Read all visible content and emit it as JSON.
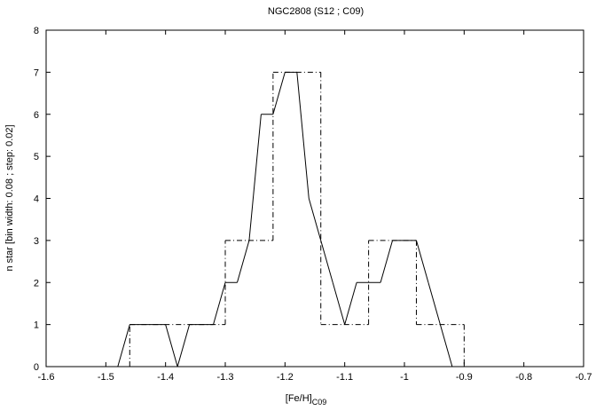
{
  "chart_data": {
    "type": "line",
    "title": "NGC2808 (S12 ; C09)",
    "xlabel": "[Fe/H]",
    "xlabel_sub": "C09",
    "ylabel": "n star [bin width: 0.08 ; step: 0.02]",
    "xlim": [
      -1.6,
      -0.7
    ],
    "ylim": [
      0,
      8
    ],
    "xticks": [
      -1.6,
      -1.5,
      -1.4,
      -1.3,
      -1.2,
      -1.1,
      -1.0,
      -0.9,
      -0.8,
      -0.7
    ],
    "xtick_labels": [
      "-1.6",
      "-1.5",
      "-1.4",
      "-1.3",
      "-1.2",
      "-1.1",
      "-1",
      "-0.9",
      "-0.8",
      "-0.7"
    ],
    "yticks": [
      0,
      1,
      2,
      3,
      4,
      5,
      6,
      7,
      8
    ],
    "ytick_labels": [
      "0",
      "1",
      "2",
      "3",
      "4",
      "5",
      "6",
      "7",
      "8"
    ],
    "grid": false,
    "series": [
      {
        "style": "solid",
        "color": "#000000",
        "x": [
          -1.6,
          -1.48,
          -1.46,
          -1.44,
          -1.42,
          -1.4,
          -1.38,
          -1.36,
          -1.34,
          -1.32,
          -1.3,
          -1.28,
          -1.26,
          -1.24,
          -1.22,
          -1.2,
          -1.18,
          -1.16,
          -1.14,
          -1.12,
          -1.1,
          -1.08,
          -1.06,
          -1.04,
          -1.02,
          -1.0,
          -0.98,
          -0.96,
          -0.94,
          -0.92,
          -0.74
        ],
        "y": [
          0,
          0,
          1,
          1,
          1,
          1,
          0,
          1,
          1,
          1,
          2,
          2,
          3,
          6,
          6,
          7,
          7,
          4,
          3,
          2,
          1,
          2,
          2,
          2,
          3,
          3,
          3,
          2,
          1,
          0,
          0
        ]
      },
      {
        "style": "dashdot",
        "color": "#000000",
        "x": [
          -1.46,
          -1.46,
          -1.3,
          -1.3,
          -1.22,
          -1.22,
          -1.14,
          -1.14,
          -1.06,
          -1.06,
          -0.98,
          -0.98,
          -0.9,
          -0.9
        ],
        "y": [
          0,
          1,
          1,
          3,
          3,
          7,
          7,
          1,
          1,
          3,
          3,
          1,
          1,
          0
        ]
      }
    ]
  }
}
